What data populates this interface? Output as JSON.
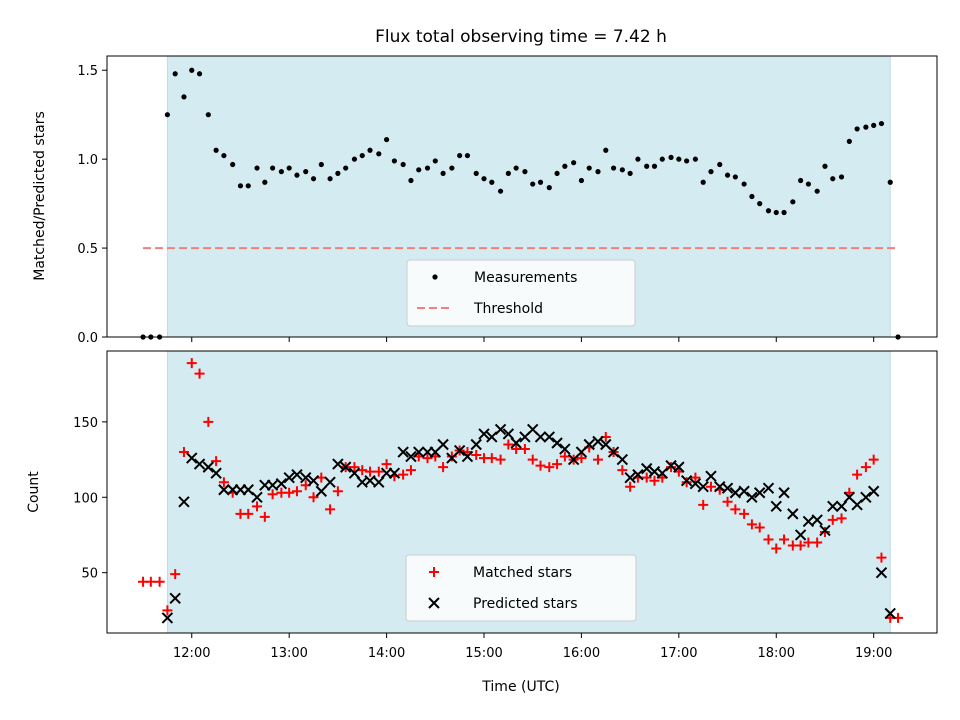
{
  "chart_data": [
    {
      "type": "scatter",
      "title": "Flux total observing time = 7.42 h",
      "ylabel": "Matched/Predicted stars",
      "xlabel": "",
      "ylim": [
        0,
        1.58
      ],
      "xlim": [
        11.13,
        19.65
      ],
      "yticks": [
        0.0,
        0.5,
        1.0,
        1.5
      ],
      "ytick_labels": [
        "0.0",
        "0.5",
        "1.0",
        "1.5"
      ],
      "shaded_region": {
        "x": [
          11.75,
          19.17
        ],
        "color": "#d4ebf1"
      },
      "threshold": {
        "name": "Threshold",
        "value": 0.5,
        "x": [
          11.5,
          19.25
        ],
        "color": "#f08080"
      },
      "legend": {
        "placement": "lower-center",
        "entries": [
          "Measurements",
          "Threshold"
        ]
      },
      "series": [
        {
          "name": "Measurements",
          "marker": "dot",
          "color": "#000000",
          "x": [
            11.5,
            11.58,
            11.67,
            11.75,
            11.83,
            11.92,
            12.0,
            12.08,
            12.17,
            12.25,
            12.33,
            12.42,
            12.5,
            12.58,
            12.67,
            12.75,
            12.83,
            12.92,
            13.0,
            13.08,
            13.17,
            13.25,
            13.33,
            13.42,
            13.5,
            13.58,
            13.67,
            13.75,
            13.83,
            13.92,
            14.0,
            14.08,
            14.17,
            14.25,
            14.33,
            14.42,
            14.5,
            14.58,
            14.67,
            14.75,
            14.83,
            14.92,
            15.0,
            15.08,
            15.17,
            15.25,
            15.33,
            15.42,
            15.5,
            15.58,
            15.67,
            15.75,
            15.83,
            15.92,
            16.0,
            16.08,
            16.17,
            16.25,
            16.33,
            16.42,
            16.5,
            16.58,
            16.67,
            16.75,
            16.83,
            16.92,
            17.0,
            17.08,
            17.17,
            17.25,
            17.33,
            17.42,
            17.5,
            17.58,
            17.67,
            17.75,
            17.83,
            17.92,
            18.0,
            18.08,
            18.17,
            18.25,
            18.33,
            18.42,
            18.5,
            18.58,
            18.67,
            18.75,
            18.83,
            18.92,
            19.0,
            19.08,
            19.17,
            19.25
          ],
          "y": [
            0,
            0,
            0,
            1.25,
            1.48,
            1.35,
            1.5,
            1.48,
            1.25,
            1.05,
            1.02,
            0.97,
            0.85,
            0.85,
            0.95,
            0.87,
            0.95,
            0.93,
            0.95,
            0.91,
            0.93,
            0.89,
            0.97,
            0.89,
            0.92,
            0.95,
            1.0,
            1.02,
            1.05,
            1.03,
            1.11,
            0.99,
            0.97,
            0.88,
            0.94,
            0.95,
            0.99,
            0.92,
            0.95,
            1.02,
            1.02,
            0.92,
            0.89,
            0.87,
            0.82,
            0.92,
            0.95,
            0.93,
            0.86,
            0.87,
            0.84,
            0.92,
            0.96,
            0.98,
            0.88,
            0.95,
            0.93,
            1.05,
            0.95,
            0.94,
            0.92,
            1.0,
            0.96,
            0.96,
            1.0,
            1.01,
            1.0,
            0.99,
            1.0,
            0.87,
            0.93,
            0.97,
            0.91,
            0.9,
            0.86,
            0.79,
            0.75,
            0.71,
            0.7,
            0.7,
            0.76,
            0.88,
            0.86,
            0.82,
            0.96,
            0.89,
            0.9,
            1.1,
            1.17,
            1.18,
            1.19,
            1.2,
            0.87,
            0
          ]
        }
      ]
    },
    {
      "type": "scatter",
      "title": "",
      "ylabel": "Count",
      "xlabel": "Time (UTC)",
      "ylim": [
        10,
        197
      ],
      "xlim": [
        11.13,
        19.65
      ],
      "yticks": [
        50,
        100,
        150
      ],
      "ytick_labels": [
        "50",
        "100",
        "150"
      ],
      "xticks": [
        12,
        13,
        14,
        15,
        16,
        17,
        18,
        19
      ],
      "xtick_labels": [
        "12:00",
        "13:00",
        "14:00",
        "15:00",
        "16:00",
        "17:00",
        "18:00",
        "19:00"
      ],
      "shaded_region": {
        "x": [
          11.75,
          19.17
        ],
        "color": "#d4ebf1"
      },
      "legend": {
        "placement": "lower-center",
        "entries": [
          "Matched stars",
          "Predicted stars"
        ]
      },
      "series": [
        {
          "name": "Matched stars",
          "marker": "plus",
          "color": "#ff0000",
          "x": [
            11.5,
            11.58,
            11.67,
            11.75,
            11.83,
            11.92,
            12.0,
            12.08,
            12.17,
            12.25,
            12.33,
            12.42,
            12.5,
            12.58,
            12.67,
            12.75,
            12.83,
            12.92,
            13.0,
            13.08,
            13.17,
            13.25,
            13.33,
            13.42,
            13.5,
            13.58,
            13.67,
            13.75,
            13.83,
            13.92,
            14.0,
            14.08,
            14.17,
            14.25,
            14.33,
            14.42,
            14.5,
            14.58,
            14.67,
            14.75,
            14.83,
            14.92,
            15.0,
            15.08,
            15.17,
            15.25,
            15.33,
            15.42,
            15.5,
            15.58,
            15.67,
            15.75,
            15.83,
            15.92,
            16.0,
            16.08,
            16.17,
            16.25,
            16.33,
            16.42,
            16.5,
            16.58,
            16.67,
            16.75,
            16.83,
            16.92,
            17.0,
            17.08,
            17.17,
            17.25,
            17.33,
            17.42,
            17.5,
            17.58,
            17.67,
            17.75,
            17.83,
            17.92,
            18.0,
            18.08,
            18.17,
            18.25,
            18.33,
            18.42,
            18.5,
            18.58,
            18.67,
            18.75,
            18.83,
            18.92,
            19.0,
            19.08,
            19.17,
            19.25
          ],
          "y": [
            44,
            44,
            44,
            25,
            49,
            130,
            189,
            182,
            150,
            124,
            110,
            103,
            89,
            89,
            94,
            87,
            102,
            103,
            103,
            104,
            108,
            100,
            113,
            92,
            104,
            120,
            120,
            118,
            117,
            117,
            122,
            114,
            115,
            118,
            127,
            126,
            127,
            120,
            127,
            131,
            130,
            128,
            126,
            126,
            125,
            135,
            132,
            132,
            125,
            121,
            120,
            122,
            127,
            125,
            126,
            133,
            125,
            140,
            130,
            118,
            107,
            113,
            113,
            111,
            113,
            120,
            117,
            110,
            113,
            95,
            107,
            105,
            97,
            92,
            89,
            82,
            80,
            72,
            66,
            72,
            68,
            68,
            70,
            70,
            77,
            85,
            86,
            103,
            115,
            120,
            125,
            60,
            20,
            20
          ]
        },
        {
          "name": "Predicted stars",
          "marker": "x",
          "color": "#000000",
          "x": [
            11.75,
            11.83,
            11.92,
            12.0,
            12.08,
            12.17,
            12.25,
            12.33,
            12.42,
            12.5,
            12.58,
            12.67,
            12.75,
            12.83,
            12.92,
            13.0,
            13.08,
            13.17,
            13.25,
            13.33,
            13.42,
            13.5,
            13.58,
            13.67,
            13.75,
            13.83,
            13.92,
            14.0,
            14.08,
            14.17,
            14.25,
            14.33,
            14.42,
            14.5,
            14.58,
            14.67,
            14.75,
            14.83,
            14.92,
            15.0,
            15.08,
            15.17,
            15.25,
            15.33,
            15.42,
            15.5,
            15.58,
            15.67,
            15.75,
            15.83,
            15.92,
            16.0,
            16.08,
            16.17,
            16.25,
            16.33,
            16.42,
            16.5,
            16.58,
            16.67,
            16.75,
            16.83,
            16.92,
            17.0,
            17.08,
            17.17,
            17.25,
            17.33,
            17.42,
            17.5,
            17.58,
            17.67,
            17.75,
            17.83,
            17.92,
            18.0,
            18.08,
            18.17,
            18.25,
            18.33,
            18.42,
            18.5,
            18.58,
            18.67,
            18.75,
            18.83,
            18.92,
            19.0,
            19.08,
            19.17
          ],
          "y": [
            20,
            33,
            97,
            126,
            122,
            120,
            116,
            105,
            105,
            105,
            105,
            100,
            108,
            108,
            109,
            113,
            115,
            113,
            111,
            104,
            110,
            122,
            120,
            116,
            110,
            111,
            110,
            116,
            116,
            130,
            127,
            130,
            130,
            130,
            135,
            126,
            131,
            127,
            135,
            142,
            140,
            145,
            142,
            136,
            140,
            145,
            140,
            140,
            136,
            132,
            125,
            130,
            135,
            137,
            135,
            130,
            125,
            113,
            115,
            119,
            117,
            116,
            121,
            120,
            111,
            109,
            107,
            114,
            107,
            106,
            103,
            104,
            100,
            103,
            106,
            94,
            103,
            89,
            75,
            84,
            85,
            78,
            94,
            94,
            100,
            95,
            100,
            104,
            50,
            23
          ]
        }
      ]
    }
  ]
}
